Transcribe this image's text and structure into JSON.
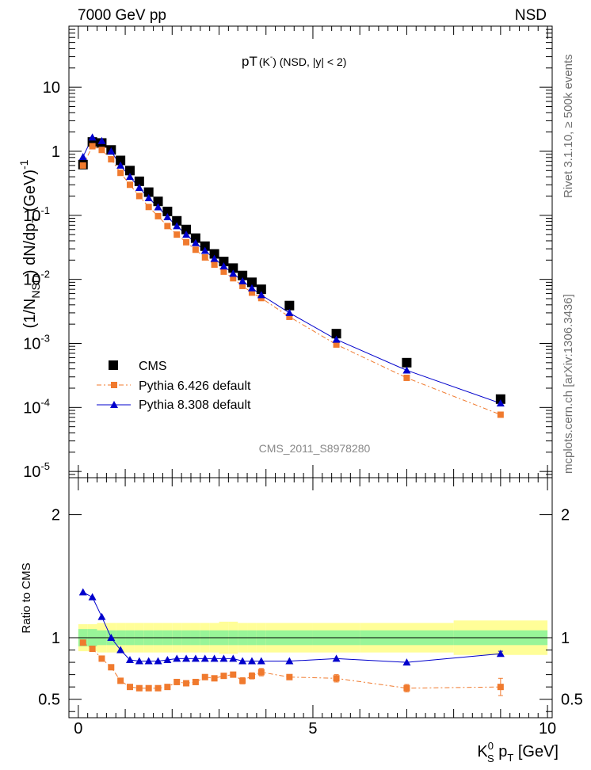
{
  "header": {
    "left": "7000 GeV pp",
    "right": "NSD"
  },
  "side": {
    "rivet": "Rivet 3.1.10, ≥ 500k events",
    "mcplots": "mcplots.cern.ch [arXiv:1306.3436]"
  },
  "colors": {
    "cms": "#000000",
    "pythia6": "#f07a2e",
    "pythia8": "#0000cc",
    "band_inner": "#98f598",
    "band_outer": "#fffe98"
  },
  "chart_data": [
    {
      "type": "scatter",
      "name": "main",
      "title_main": "pT",
      "title_sub": "(K",
      "title_sup": "-",
      "title_rest": ") (NSD, |y| < 2)",
      "watermark": "CMS_2011_S8978280",
      "ylabel": "(1/N_NSD) dN/dp_T (GeV)^-1",
      "yscale": "log",
      "ylim": [
        8e-06,
        90
      ],
      "xlim": [
        -0.2,
        10.1
      ],
      "y_ticks": [
        {
          "value": 1e-05,
          "base": "10",
          "exp": "-5"
        },
        {
          "value": 0.0001,
          "base": "10",
          "exp": "-4"
        },
        {
          "value": 0.001,
          "base": "10",
          "exp": "-3"
        },
        {
          "value": 0.01,
          "base": "10",
          "exp": "-2"
        },
        {
          "value": 0.1,
          "base": "10",
          "exp": "-1"
        },
        {
          "value": 1,
          "base": "1",
          "exp": ""
        },
        {
          "value": 10,
          "base": "10",
          "exp": ""
        }
      ],
      "legend": [
        {
          "key": "cms",
          "label": "CMS"
        },
        {
          "key": "p6",
          "label": "Pythia 6.426 default"
        },
        {
          "key": "p8",
          "label": "Pythia 8.308 default"
        }
      ],
      "series": [
        {
          "name": "CMS",
          "key": "cms",
          "x": [
            0.1,
            0.3,
            0.5,
            0.7,
            0.9,
            1.1,
            1.3,
            1.5,
            1.7,
            1.9,
            2.1,
            2.3,
            2.5,
            2.7,
            2.9,
            3.1,
            3.3,
            3.5,
            3.7,
            3.9,
            4.5,
            5.5,
            7.0,
            9.0
          ],
          "y": [
            0.62,
            1.4,
            1.35,
            1.05,
            0.72,
            0.5,
            0.34,
            0.23,
            0.165,
            0.115,
            0.082,
            0.06,
            0.044,
            0.033,
            0.025,
            0.019,
            0.015,
            0.0115,
            0.009,
            0.007,
            0.0039,
            0.00142,
            0.0005,
            0.000135
          ]
        },
        {
          "name": "Pythia 6.426 default",
          "key": "p6",
          "x": [
            0.1,
            0.3,
            0.5,
            0.7,
            0.9,
            1.1,
            1.3,
            1.5,
            1.7,
            1.9,
            2.1,
            2.3,
            2.5,
            2.7,
            2.9,
            3.1,
            3.3,
            3.5,
            3.7,
            3.9,
            4.5,
            5.5,
            7.0,
            9.0
          ],
          "y": [
            0.6,
            1.2,
            1.05,
            0.75,
            0.46,
            0.3,
            0.2,
            0.135,
            0.097,
            0.068,
            0.05,
            0.038,
            0.029,
            0.022,
            0.017,
            0.0132,
            0.0104,
            0.0079,
            0.0062,
            0.0051,
            0.0026,
            0.00096,
            0.00029,
            7.7e-05
          ]
        },
        {
          "name": "Pythia 8.308 default",
          "key": "p8",
          "x": [
            0.1,
            0.3,
            0.5,
            0.7,
            0.9,
            1.1,
            1.3,
            1.5,
            1.7,
            1.9,
            2.1,
            2.3,
            2.5,
            2.7,
            2.9,
            3.1,
            3.3,
            3.5,
            3.7,
            3.9,
            4.5,
            5.5,
            7.0,
            9.0
          ],
          "y": [
            0.82,
            1.65,
            1.45,
            1.0,
            0.6,
            0.4,
            0.27,
            0.186,
            0.134,
            0.094,
            0.068,
            0.05,
            0.037,
            0.028,
            0.021,
            0.016,
            0.0123,
            0.0094,
            0.0073,
            0.0057,
            0.003,
            0.00115,
            0.00038,
            0.000116
          ]
        }
      ]
    },
    {
      "type": "line",
      "name": "ratio",
      "ylabel": "Ratio to CMS",
      "xlabel_main": "K",
      "xlabel_sup": "0",
      "xlabel_sub": "S",
      "xlabel_rest": " p",
      "xlabel_sub2": "T",
      "xlabel_unit": " [GeV]",
      "ylim": [
        0.35,
        2.3
      ],
      "xlim": [
        -0.2,
        10.1
      ],
      "y_ticks": [
        0.5,
        1,
        2
      ],
      "y_tick_labels": [
        "0.5",
        "1",
        "2"
      ],
      "x_ticks": [
        0,
        5,
        10
      ],
      "x_tick_labels": [
        "0",
        "5",
        "10"
      ],
      "band_edges": [
        0.0,
        0.2,
        0.4,
        0.6,
        0.8,
        1.0,
        1.2,
        1.4,
        1.6,
        1.8,
        2.0,
        2.2,
        2.4,
        2.6,
        2.8,
        3.0,
        3.2,
        3.4,
        3.6,
        3.8,
        4.0,
        5.0,
        6.0,
        8.0,
        10.0
      ],
      "band_inner": [
        0.07,
        0.07,
        0.06,
        0.06,
        0.06,
        0.06,
        0.06,
        0.06,
        0.06,
        0.06,
        0.06,
        0.06,
        0.06,
        0.06,
        0.06,
        0.06,
        0.06,
        0.06,
        0.06,
        0.06,
        0.06,
        0.06,
        0.06,
        0.06,
        0.06
      ],
      "band_outer": [
        0.11,
        0.11,
        0.12,
        0.12,
        0.12,
        0.12,
        0.12,
        0.12,
        0.12,
        0.12,
        0.12,
        0.12,
        0.12,
        0.12,
        0.12,
        0.13,
        0.13,
        0.12,
        0.12,
        0.12,
        0.12,
        0.12,
        0.12,
        0.14,
        0.14
      ],
      "series": [
        {
          "name": "Pythia 6.426 default",
          "key": "p6",
          "x": [
            0.1,
            0.3,
            0.5,
            0.7,
            0.9,
            1.1,
            1.3,
            1.5,
            1.7,
            1.9,
            2.1,
            2.3,
            2.5,
            2.7,
            2.9,
            3.1,
            3.3,
            3.5,
            3.7,
            3.9,
            4.5,
            5.5,
            7.0,
            9.0
          ],
          "y": [
            0.96,
            0.91,
            0.83,
            0.76,
            0.65,
            0.6,
            0.59,
            0.59,
            0.59,
            0.6,
            0.64,
            0.63,
            0.64,
            0.68,
            0.67,
            0.69,
            0.7,
            0.65,
            0.69,
            0.72,
            0.68,
            0.67,
            0.59,
            0.6
          ],
          "err": [
            0.01,
            0.01,
            0.01,
            0.01,
            0.01,
            0.01,
            0.01,
            0.01,
            0.01,
            0.01,
            0.01,
            0.01,
            0.01,
            0.015,
            0.015,
            0.02,
            0.02,
            0.025,
            0.025,
            0.03,
            0.02,
            0.03,
            0.03,
            0.07
          ]
        },
        {
          "name": "Pythia 8.308 default",
          "key": "p8",
          "x": [
            0.1,
            0.3,
            0.5,
            0.7,
            0.9,
            1.1,
            1.3,
            1.5,
            1.7,
            1.9,
            2.1,
            2.3,
            2.5,
            2.7,
            2.9,
            3.1,
            3.3,
            3.5,
            3.7,
            3.9,
            4.5,
            5.5,
            7.0,
            9.0
          ],
          "y": [
            1.37,
            1.33,
            1.17,
            1.0,
            0.9,
            0.82,
            0.81,
            0.81,
            0.81,
            0.82,
            0.83,
            0.83,
            0.83,
            0.83,
            0.83,
            0.83,
            0.83,
            0.81,
            0.81,
            0.81,
            0.81,
            0.83,
            0.8,
            0.87
          ],
          "err": [
            0.01,
            0.01,
            0.01,
            0.01,
            0.01,
            0.01,
            0.01,
            0.01,
            0.01,
            0.01,
            0.01,
            0.01,
            0.01,
            0.01,
            0.01,
            0.01,
            0.01,
            0.01,
            0.01,
            0.01,
            0.01,
            0.01,
            0.01,
            0.02
          ]
        }
      ]
    }
  ]
}
